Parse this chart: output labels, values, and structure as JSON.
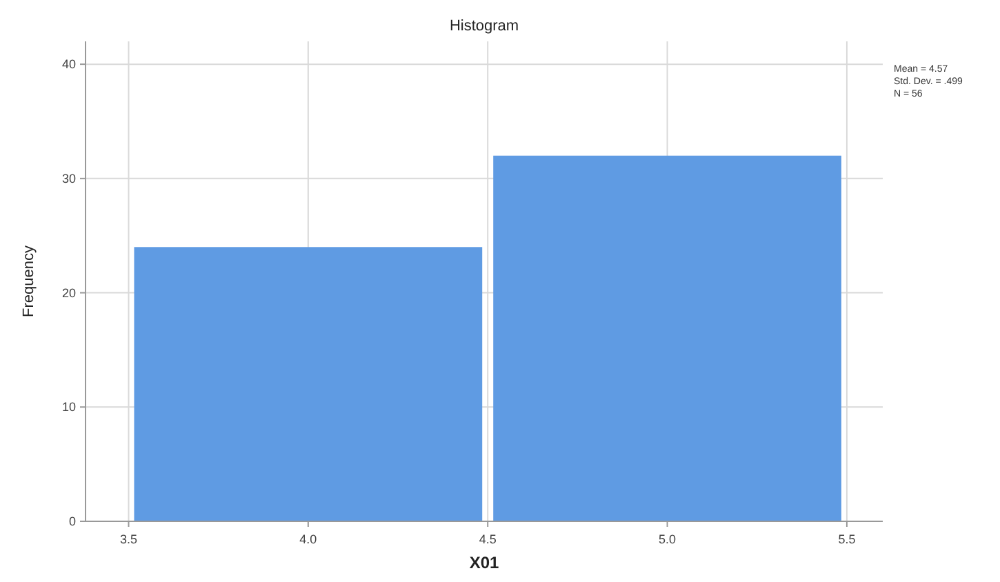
{
  "chart_data": {
    "type": "histogram",
    "title": "Histogram",
    "xlabel": "X01",
    "ylabel": "Frequency",
    "bins": [
      3.5,
      4.5,
      5.5
    ],
    "values": [
      24,
      32
    ],
    "color": "#5f9be3",
    "xlim": [
      3.38,
      5.6
    ],
    "xticks": [
      {
        "value": 3.5,
        "label": "3.5"
      },
      {
        "value": 4,
        "label": "4.0"
      },
      {
        "value": 4.5,
        "label": "4.5"
      },
      {
        "value": 5,
        "label": "5.0"
      },
      {
        "value": 5.5,
        "label": "5.5"
      }
    ],
    "ylim": [
      0,
      42
    ],
    "yticks": [
      0,
      10,
      20,
      30,
      40
    ],
    "grid": true,
    "annotations": [
      "Mean = 4.57",
      "Std. Dev. = .499",
      "N = 56"
    ]
  }
}
